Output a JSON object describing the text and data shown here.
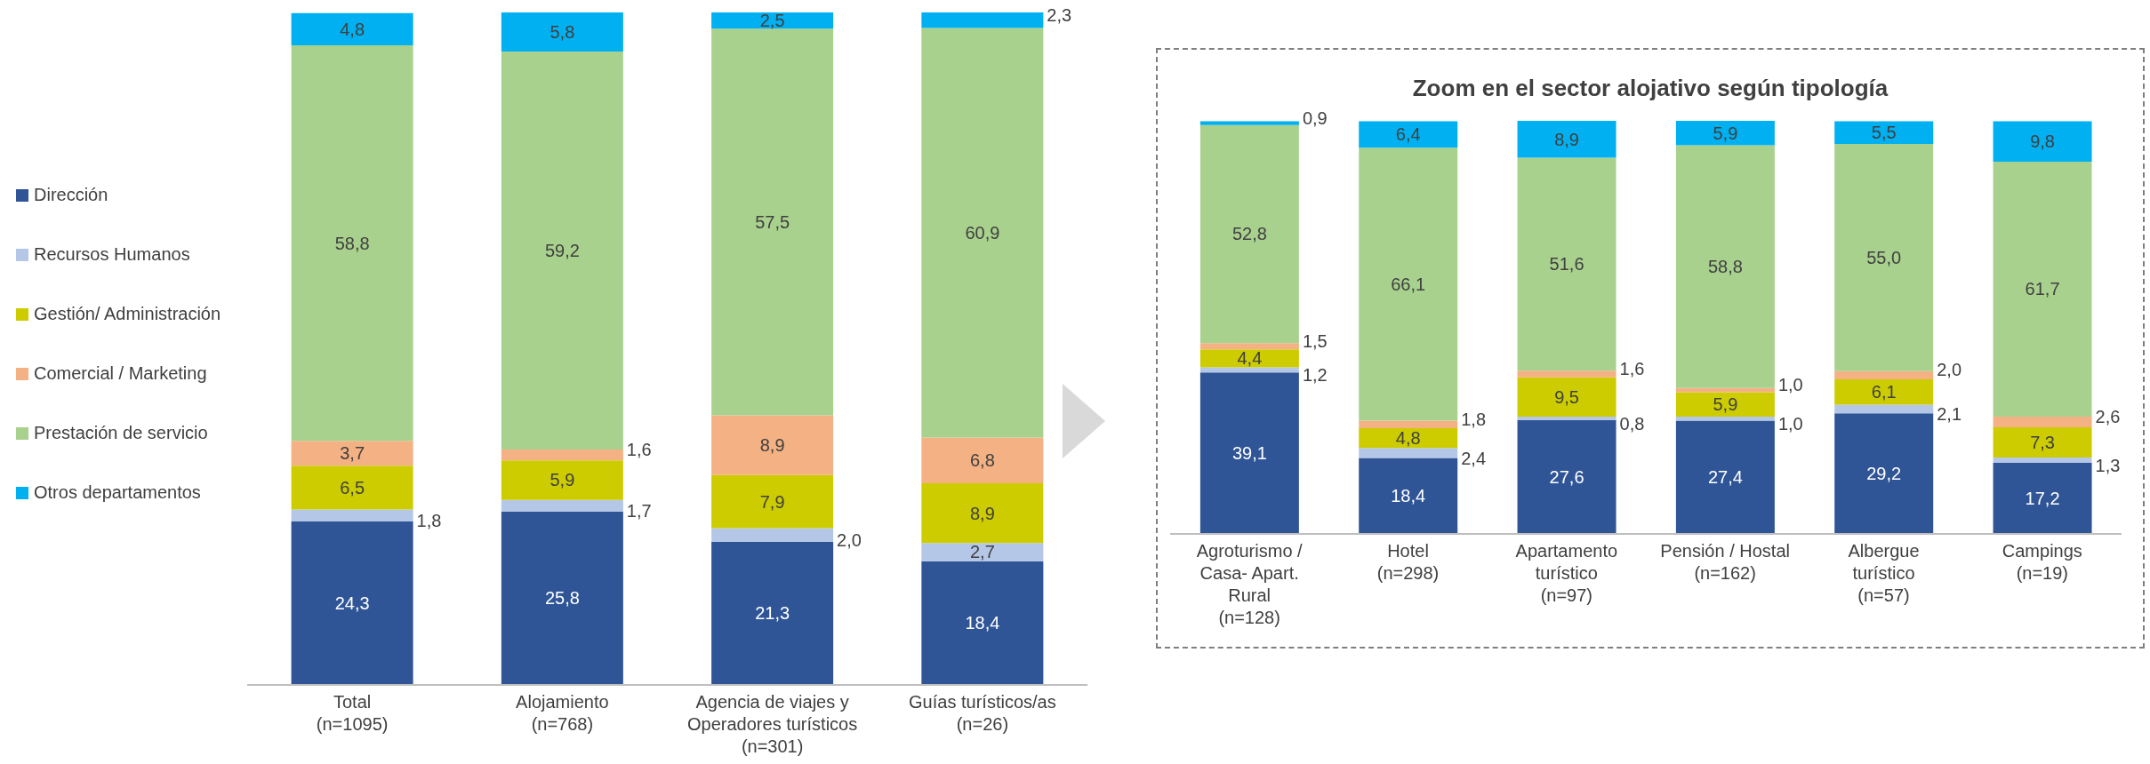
{
  "chart_data": [
    {
      "type": "bar",
      "stacked": true,
      "legend": "left",
      "tick_labels": "x",
      "ylim": [
        0,
        100
      ],
      "categories": [
        "Total (n=1095)",
        "Alojamiento (n=768)",
        "Agencia de viajes y Operadores turísticos (n=301)",
        "Guías turísticos/as (n=26)"
      ],
      "series": [
        {
          "name": "Dirección",
          "color": "#2f5597",
          "values": [
            24.3,
            25.8,
            21.3,
            18.4
          ],
          "value_labels": [
            "24,3",
            "25,8",
            "21,3",
            "18,4"
          ]
        },
        {
          "name": "Recursos Humanos",
          "color": "#b4c7e7",
          "values": [
            1.8,
            1.7,
            2.0,
            2.7
          ],
          "value_labels": [
            "1,8",
            "1,7",
            "2,0",
            "2,7"
          ]
        },
        {
          "name": "Gestión/ Administración",
          "color": "#cccc00",
          "values": [
            6.5,
            5.9,
            7.9,
            8.9
          ],
          "value_labels": [
            "6,5",
            "5,9",
            "7,9",
            "8,9"
          ]
        },
        {
          "name": "Comercial / Marketing",
          "color": "#f4b183",
          "values": [
            3.7,
            1.6,
            8.9,
            6.8
          ],
          "value_labels": [
            "3,7",
            "1,6",
            "8,9",
            "6,8"
          ]
        },
        {
          "name": "Prestación de servicio",
          "color": "#a9d18e",
          "values": [
            58.8,
            59.2,
            57.5,
            60.9
          ],
          "value_labels": [
            "58,8",
            "59,2",
            "57,5",
            "60,9"
          ]
        },
        {
          "name": "Otros departamentos",
          "color": "#00b0f0",
          "values": [
            4.8,
            5.8,
            2.5,
            2.3
          ],
          "value_labels": [
            "4,8",
            "5,8",
            "2,5",
            "2,3"
          ]
        }
      ]
    },
    {
      "type": "bar",
      "stacked": true,
      "legend": false,
      "tick_labels": "x",
      "ylim": [
        0,
        100
      ],
      "title": "Zoom en el sector alojativo según tipología",
      "categories": [
        "Agroturismo / Casa- Apart. Rural (n=128)",
        "Hotel (n=298)",
        "Apartamento turístico (n=97)",
        "Pensión / Hostal (n=162)",
        "Albergue turístico (n=57)",
        "Campings (n=19)"
      ],
      "series": [
        {
          "color": "#2f5597",
          "values": [
            39.1,
            18.4,
            27.6,
            27.4,
            29.2,
            17.2
          ],
          "value_labels": [
            "39,1",
            "18,4",
            "27,6",
            "27,4",
            "29,2",
            "17,2"
          ]
        },
        {
          "color": "#b4c7e7",
          "values": [
            1.2,
            2.4,
            0.8,
            1.0,
            2.1,
            1.3
          ],
          "value_labels": [
            "1,2",
            "2,4",
            "0,8",
            "1,0",
            "2,1",
            "1,3"
          ]
        },
        {
          "color": "#cccc00",
          "values": [
            4.4,
            4.8,
            9.5,
            5.9,
            6.1,
            7.3
          ],
          "value_labels": [
            "4,4",
            "4,8",
            "9,5",
            "5,9",
            "6,1",
            "7,3"
          ]
        },
        {
          "color": "#f4b183",
          "values": [
            1.5,
            1.8,
            1.6,
            1.0,
            2.0,
            2.6
          ],
          "value_labels": [
            "1,5",
            "1,8",
            "1,6",
            "1,0",
            "2,0",
            "2,6"
          ]
        },
        {
          "color": "#a9d18e",
          "values": [
            52.8,
            66.1,
            51.6,
            58.8,
            55.0,
            61.7
          ],
          "value_labels": [
            "52,8",
            "66,1",
            "51,6",
            "58,8",
            "55,0",
            "61,7"
          ]
        },
        {
          "color": "#00b0f0",
          "values": [
            0.9,
            6.4,
            8.9,
            5.9,
            5.5,
            9.8
          ],
          "value_labels": [
            "0,9",
            "6,4",
            "8,9",
            "5,9",
            "5,5",
            "9,8"
          ]
        }
      ]
    }
  ]
}
